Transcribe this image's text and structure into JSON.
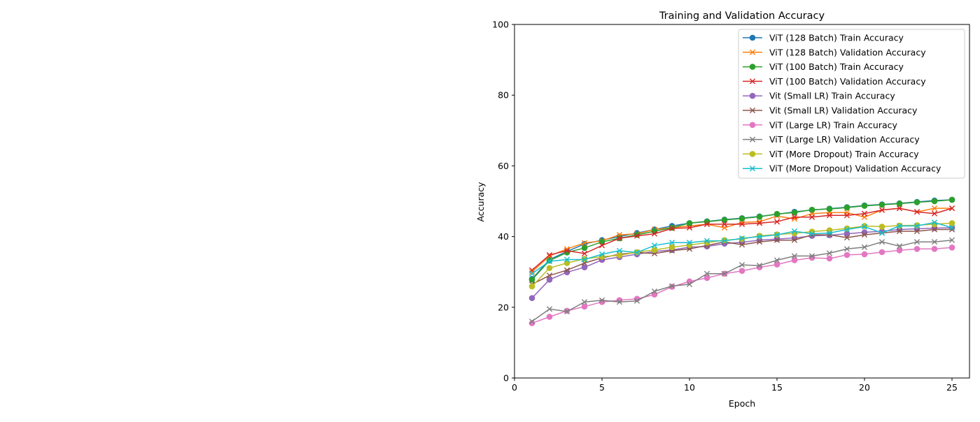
{
  "chart_data": {
    "type": "line",
    "title": "Training and Validation Accuracy",
    "xlabel": "Epoch",
    "ylabel": "Accuracy",
    "xlim": [
      0,
      26
    ],
    "ylim": [
      0,
      100
    ],
    "xticks": [
      0,
      5,
      10,
      15,
      20,
      25
    ],
    "yticks": [
      0,
      20,
      40,
      60,
      80,
      100
    ],
    "grid": false,
    "legend_position": "top-right",
    "x": [
      1,
      2,
      3,
      4,
      5,
      6,
      7,
      8,
      9,
      10,
      11,
      12,
      13,
      14,
      15,
      16,
      17,
      18,
      19,
      20,
      21,
      22,
      23,
      24,
      25
    ],
    "series": [
      {
        "name": "ViT (128 Batch) Train Accuracy",
        "color": "#1f77b4",
        "marker": "circle",
        "values": [
          28.0,
          33.5,
          35.8,
          37.9,
          39.0,
          40.0,
          41.0,
          42.0,
          43.0,
          43.8,
          44.3,
          44.8,
          45.2,
          45.7,
          46.3,
          47.0,
          47.5,
          47.9,
          48.3,
          48.8,
          49.1,
          49.4,
          49.8,
          50.2,
          50.4
        ]
      },
      {
        "name": "ViT (128 Batch) Validation Accuracy",
        "color": "#ff7f0e",
        "marker": "x",
        "values": [
          30.0,
          34.5,
          36.5,
          38.2,
          38.8,
          40.5,
          40.8,
          42.0,
          42.5,
          43.0,
          43.5,
          42.5,
          44.0,
          44.2,
          45.8,
          45.0,
          46.5,
          46.8,
          46.8,
          45.5,
          47.5,
          48.0,
          47.0,
          48.0,
          48.0
        ]
      },
      {
        "name": "ViT (100 Batch) Train Accuracy",
        "color": "#2ca02c",
        "marker": "circle",
        "values": [
          27.8,
          33.2,
          35.5,
          36.8,
          38.5,
          39.5,
          40.5,
          41.5,
          42.5,
          43.8,
          44.2,
          44.7,
          45.1,
          45.6,
          46.4,
          46.8,
          47.6,
          47.8,
          48.2,
          48.7,
          49.0,
          49.3,
          49.7,
          50.0,
          50.4
        ]
      },
      {
        "name": "ViT (100 Batch) Validation Accuracy",
        "color": "#d62728",
        "marker": "x",
        "values": [
          30.5,
          34.8,
          36.0,
          35.2,
          37.5,
          39.5,
          40.2,
          40.8,
          42.3,
          42.5,
          43.5,
          43.5,
          43.5,
          43.8,
          44.2,
          45.5,
          45.5,
          46.0,
          46.0,
          46.5,
          47.5,
          48.0,
          47.0,
          46.5,
          48.0
        ]
      },
      {
        "name": "Vit (Small LR) Train Accuracy",
        "color": "#9467bd",
        "marker": "circle",
        "values": [
          22.6,
          27.8,
          29.9,
          31.3,
          33.4,
          34.2,
          35.0,
          35.8,
          36.2,
          37.0,
          37.2,
          38.0,
          38.4,
          39.0,
          39.3,
          39.6,
          40.2,
          40.4,
          40.8,
          41.2,
          41.5,
          42.0,
          42.2,
          42.4,
          42.5
        ]
      },
      {
        "name": "Vit (Small LR) Validation Accuracy",
        "color": "#8c564b",
        "marker": "x",
        "values": [
          26.5,
          29.0,
          30.5,
          32.5,
          34.0,
          35.0,
          35.5,
          35.2,
          36.0,
          36.5,
          37.5,
          38.5,
          37.7,
          38.5,
          39.0,
          39.0,
          40.5,
          40.5,
          39.7,
          40.5,
          41.0,
          41.5,
          41.5,
          42.0,
          42.0
        ]
      },
      {
        "name": "ViT (Large LR) Train Accuracy",
        "color": "#e377c2",
        "marker": "circle",
        "values": [
          15.5,
          17.3,
          19.0,
          20.2,
          21.5,
          22.0,
          22.4,
          23.6,
          25.8,
          27.3,
          28.3,
          29.5,
          30.3,
          31.3,
          32.1,
          33.3,
          34.0,
          33.8,
          34.8,
          35.0,
          35.6,
          36.1,
          36.5,
          36.5,
          36.9
        ]
      },
      {
        "name": "ViT (Large LR) Validation Accuracy",
        "color": "#7f7f7f",
        "marker": "x",
        "values": [
          16.0,
          19.5,
          18.8,
          21.5,
          22.0,
          21.5,
          21.8,
          24.5,
          26.0,
          26.5,
          29.5,
          29.5,
          32.0,
          31.8,
          33.3,
          34.5,
          34.5,
          35.3,
          36.5,
          37.0,
          38.5,
          37.3,
          38.5,
          38.5,
          39.0
        ]
      },
      {
        "name": "ViT (More Dropout) Train Accuracy",
        "color": "#bcbd22",
        "marker": "circle",
        "values": [
          25.9,
          31.1,
          32.5,
          33.7,
          34.3,
          34.7,
          35.6,
          36.2,
          37.0,
          37.6,
          38.3,
          39.0,
          39.3,
          40.2,
          40.6,
          40.9,
          41.4,
          41.8,
          42.3,
          43.0,
          42.8,
          43.1,
          43.2,
          43.5,
          43.8
        ]
      },
      {
        "name": "ViT (More Dropout) Validation Accuracy",
        "color": "#17becf",
        "marker": "x",
        "values": [
          29.5,
          33.0,
          33.5,
          33.5,
          35.0,
          36.0,
          35.5,
          37.5,
          38.3,
          38.3,
          38.8,
          38.8,
          39.5,
          40.0,
          40.5,
          41.5,
          40.8,
          41.0,
          42.0,
          42.8,
          41.0,
          43.0,
          43.0,
          44.0,
          42.5
        ]
      }
    ]
  }
}
